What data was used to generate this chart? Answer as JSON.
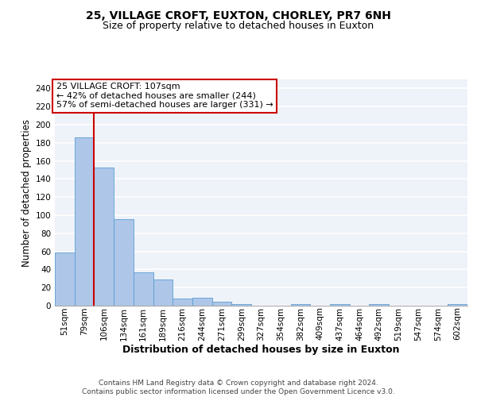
{
  "title_line1": "25, VILLAGE CROFT, EUXTON, CHORLEY, PR7 6NH",
  "title_line2": "Size of property relative to detached houses in Euxton",
  "xlabel": "Distribution of detached houses by size in Euxton",
  "ylabel": "Number of detached properties",
  "bin_labels": [
    "51sqm",
    "79sqm",
    "106sqm",
    "134sqm",
    "161sqm",
    "189sqm",
    "216sqm",
    "244sqm",
    "271sqm",
    "299sqm",
    "327sqm",
    "354sqm",
    "382sqm",
    "409sqm",
    "437sqm",
    "464sqm",
    "492sqm",
    "519sqm",
    "547sqm",
    "574sqm",
    "602sqm"
  ],
  "bar_values": [
    59,
    186,
    153,
    96,
    37,
    29,
    8,
    9,
    4,
    2,
    0,
    0,
    2,
    0,
    2,
    0,
    2,
    0,
    0,
    0,
    2
  ],
  "bar_color": "#aec6e8",
  "bar_edge_color": "#5a9fd4",
  "vline_x_index": 2,
  "vline_color": "#cc0000",
  "annotation_text": "25 VILLAGE CROFT: 107sqm\n← 42% of detached houses are smaller (244)\n57% of semi-detached houses are larger (331) →",
  "annotation_box_color": "#ffffff",
  "annotation_box_edge": "#cc0000",
  "ylim": [
    0,
    250
  ],
  "yticks": [
    0,
    20,
    40,
    60,
    80,
    100,
    120,
    140,
    160,
    180,
    200,
    220,
    240
  ],
  "background_color": "#eef2f9",
  "footer_text": "Contains HM Land Registry data © Crown copyright and database right 2024.\nContains public sector information licensed under the Open Government Licence v3.0.",
  "grid_color": "#ffffff",
  "title_fontsize": 10,
  "subtitle_fontsize": 9,
  "axis_label_fontsize": 8.5,
  "tick_fontsize": 7.5,
  "annotation_fontsize": 8,
  "footer_fontsize": 6.5
}
